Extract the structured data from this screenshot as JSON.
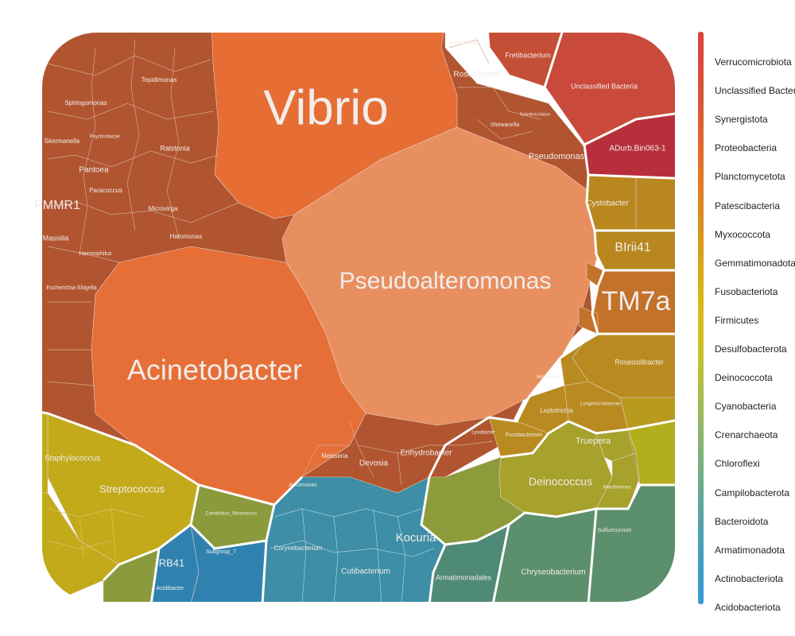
{
  "chart_data": {
    "type": "treemap",
    "title": "",
    "phyla": [
      {
        "name": "Proteobacteria",
        "color": "#e06d33",
        "genera": [
          {
            "name": "Vibrio",
            "color": "#e66d33"
          },
          {
            "name": "Pseudoalteromonas",
            "color": "#e88f60"
          },
          {
            "name": "Acinetobacter",
            "color": "#e66f38"
          },
          {
            "name": "Pseudomonas",
            "color": "#b5542f"
          },
          {
            "name": "Roseomonas",
            "color": "#ad512f"
          },
          {
            "name": "Shewanella",
            "color": "#ad512f"
          },
          {
            "name": "Rubellimicrobium",
            "color": "#ad512f"
          },
          {
            "name": "Xanthomonas",
            "color": "#ad512f"
          },
          {
            "name": "Sphingomonas",
            "color": "#b05530"
          },
          {
            "name": "Tepidimonas",
            "color": "#b05530"
          },
          {
            "name": "Skermanella",
            "color": "#b05530"
          },
          {
            "name": "Psychrobacter",
            "color": "#b05530"
          },
          {
            "name": "Ralstonia",
            "color": "#b05530"
          },
          {
            "name": "Pantoea",
            "color": "#b05530"
          },
          {
            "name": "Paracoccus",
            "color": "#b05530"
          },
          {
            "name": "Microvirga",
            "color": "#b05530"
          },
          {
            "name": "Halomonas",
            "color": "#b05530"
          },
          {
            "name": "PMMR1",
            "color": "#b05530"
          },
          {
            "name": "Massilia",
            "color": "#b05530"
          },
          {
            "name": "Haemophilus",
            "color": "#b05530"
          },
          {
            "name": "Escherichia-Shigella",
            "color": "#b05530"
          },
          {
            "name": "Enhydrobacter",
            "color": "#b05530"
          },
          {
            "name": "Devosia",
            "color": "#b05530"
          },
          {
            "name": "Neisseria",
            "color": "#b05530"
          },
          {
            "name": "Aeromonas",
            "color": "#b05530"
          },
          {
            "name": "Lysobacter",
            "color": "#b05530"
          },
          {
            "name": "Marinomonas",
            "color": "#b05530"
          }
        ]
      },
      {
        "name": "Planctomycetota",
        "color": "#e86d35",
        "genera": [
          {
            "name": "Fretibacterium",
            "color": "#c44f36"
          }
        ]
      },
      {
        "name": "Unclassified Bacteria",
        "color": "#cc4d3d",
        "genera": [
          {
            "name": "Unclassified Bacteria",
            "color": "#c94a3b"
          }
        ]
      },
      {
        "name": "Verrucomicrobiota",
        "color": "#e0403f",
        "genera": [
          {
            "name": "ADurb.Bin063-1",
            "color": "#b82f3c"
          }
        ]
      },
      {
        "name": "Patescibacteria",
        "color": "#c3722a",
        "genera": [
          {
            "name": "TM7a",
            "color": "#c3722a"
          },
          {
            "name": "Roseisolibacter",
            "color": "#b88a1f"
          },
          {
            "name": "Longimicrobiaceae",
            "color": "#b88a1f"
          },
          {
            "name": "Leptotrichia",
            "color": "#b88a1f"
          },
          {
            "name": "Fusobacterium",
            "color": "#b88a1f"
          }
        ]
      },
      {
        "name": "Myxococcota",
        "color": "#b8881f",
        "genera": [
          {
            "name": "Cystobacter",
            "color": "#b8881f"
          },
          {
            "name": "BIrii41",
            "color": "#b8881f"
          }
        ]
      },
      {
        "name": "Deinococcota",
        "color": "#a0a02c",
        "genera": [
          {
            "name": "Deinococcus",
            "color": "#a6a22b"
          },
          {
            "name": "Truepera",
            "color": "#a6a22b"
          },
          {
            "name": "Meiothermus",
            "color": "#a6a22b"
          }
        ]
      },
      {
        "name": "Firmicutes",
        "color": "#c2aa1a",
        "genera": [
          {
            "name": "Streptococcus",
            "color": "#c2aa1a"
          },
          {
            "name": "Staphylococcus",
            "color": "#c2aa1a"
          }
        ]
      },
      {
        "name": "Cyanobacteria",
        "color": "#8a9a3c",
        "genera": [
          {
            "name": "Candidatus_Nitrococcus",
            "color": "#8a9a3c"
          }
        ]
      },
      {
        "name": "Actinobacteriota",
        "color": "#3d8ea6",
        "genera": [
          {
            "name": "Kocuria",
            "color": "#3d8ea6"
          },
          {
            "name": "Cutibacterium",
            "color": "#3d8ea6"
          },
          {
            "name": "Corynebacterium",
            "color": "#3d8ea6"
          }
        ]
      },
      {
        "name": "Acidobacteriota",
        "color": "#2f82b0",
        "genera": [
          {
            "name": "RB41",
            "color": "#2f82b0"
          },
          {
            "name": "Subgroup_7",
            "color": "#2f82b0"
          },
          {
            "name": "Acidibacter",
            "color": "#2f82b0"
          }
        ]
      },
      {
        "name": "Bacteroidota",
        "color": "#5c8f6b",
        "genera": [
          {
            "name": "Chryseobacterium",
            "color": "#5c8f6b"
          },
          {
            "name": "Sulfuricurvum",
            "color": "#5c8f6b"
          }
        ]
      },
      {
        "name": "Armatimonadota",
        "color": "#4f8a76",
        "genera": [
          {
            "name": "Armatimonadales",
            "color": "#4f8a76"
          }
        ]
      }
    ],
    "legend": {
      "placement": "right",
      "items": [
        {
          "label": "Verrucomicrobiota",
          "color": "#e0403f"
        },
        {
          "label": "Unclassified Bacteria",
          "color": "#da4a3b"
        },
        {
          "label": "Synergistota",
          "color": "#d95437"
        },
        {
          "label": "Proteobacteria",
          "color": "#df5e33"
        },
        {
          "label": "Planctomycetota",
          "color": "#e3692e"
        },
        {
          "label": "Patescibacteria",
          "color": "#e27a28"
        },
        {
          "label": "Myxococcota",
          "color": "#dc8b22"
        },
        {
          "label": "Gemmatimonadota",
          "color": "#d99a1c"
        },
        {
          "label": "Fusobacteriota",
          "color": "#d9a917"
        },
        {
          "label": "Firmicutes",
          "color": "#d8b816"
        },
        {
          "label": "Desulfobacterota",
          "color": "#d2bf22"
        },
        {
          "label": "Deinococcota",
          "color": "#bfc034"
        },
        {
          "label": "Cyanobacteria",
          "color": "#a9bd4c"
        },
        {
          "label": "Crenarchaeota",
          "color": "#93b864"
        },
        {
          "label": "Chloroflexi",
          "color": "#7eb27a"
        },
        {
          "label": "Campilobacterota",
          "color": "#6cab8e"
        },
        {
          "label": "Bacteroidota",
          "color": "#5aa5a2"
        },
        {
          "label": "Armatimonadota",
          "color": "#4aa0b6"
        },
        {
          "label": "Actinobacteriota",
          "color": "#3d9cc8"
        },
        {
          "label": "Acidobacteriota",
          "color": "#3498d6"
        }
      ]
    }
  }
}
